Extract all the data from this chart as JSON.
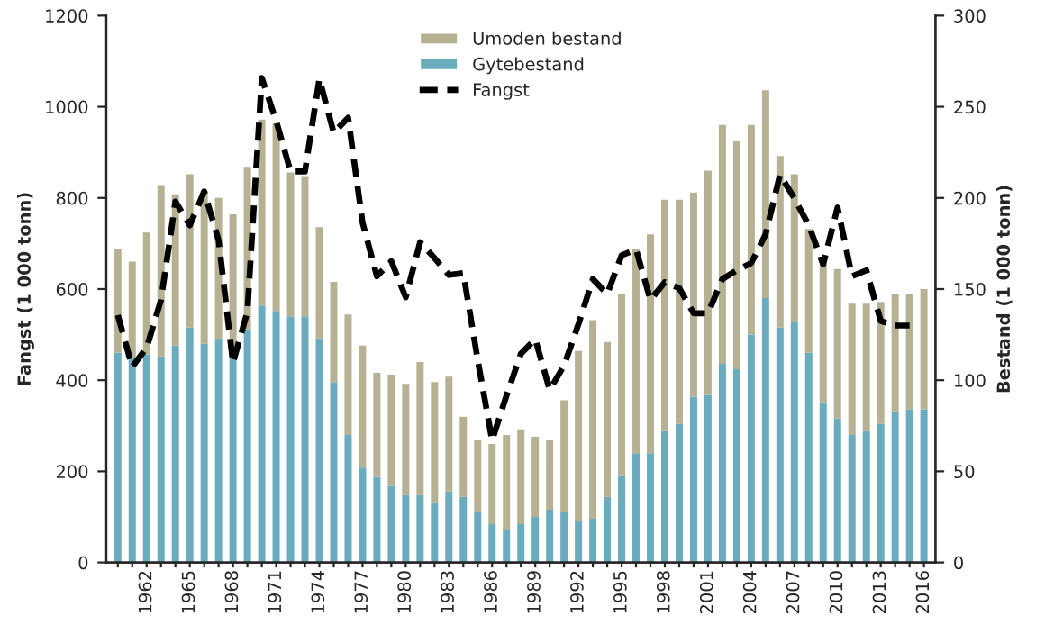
{
  "chart_data": {
    "type": "bar",
    "stacked": true,
    "ylabel": "Fangst (1 000 tonn)",
    "y2label": "Bestand (1 000 tonn)",
    "categories": [
      null,
      null,
      "1962",
      null,
      null,
      "1965",
      null,
      null,
      "1968",
      null,
      null,
      "1971",
      null,
      null,
      "1974",
      null,
      null,
      "1977",
      null,
      null,
      "1980",
      null,
      null,
      "1983",
      null,
      null,
      "1986",
      null,
      null,
      "1989",
      null,
      null,
      "1992",
      null,
      null,
      "1995",
      null,
      null,
      "1998",
      null,
      null,
      "2001",
      null,
      null,
      "2004",
      null,
      null,
      "2007",
      null,
      null,
      "2010",
      null,
      null,
      "2013",
      null,
      null,
      "2016"
    ],
    "series": [
      {
        "name": "Gytebestand",
        "axis": "y2",
        "color": "#6aacbd",
        "values": [
          115,
          112,
          114,
          113,
          119,
          129,
          120,
          123,
          113,
          128,
          141,
          138,
          135,
          135,
          123,
          99,
          70,
          52,
          47,
          42,
          37,
          37,
          33,
          39,
          36,
          28,
          21,
          18,
          21,
          25,
          29,
          28,
          23,
          24,
          36,
          48,
          60,
          60,
          72,
          76,
          91,
          92,
          109,
          106,
          125,
          145,
          129,
          132,
          115,
          88,
          79,
          70,
          72,
          76,
          83,
          84,
          84
        ]
      },
      {
        "name": "Umoden bestand",
        "axis": "y2",
        "color": "#b6b193",
        "values": [
          57,
          53,
          67,
          94,
          83,
          84,
          84,
          77,
          78,
          89,
          102,
          103,
          79,
          77,
          61,
          55,
          66,
          67,
          57,
          61,
          61,
          73,
          66,
          63,
          44,
          39,
          44,
          52,
          52,
          44,
          38,
          61,
          93,
          109,
          85,
          99,
          112,
          120,
          127,
          123,
          112,
          123,
          131,
          125,
          115,
          114,
          94,
          81,
          68,
          76,
          82,
          72,
          70,
          67,
          64,
          63,
          66
        ]
      },
      {
        "name": "Fangst",
        "type": "line",
        "axis": "y",
        "color": "#000000",
        "line_style": "dashed",
        "values": [
          543,
          429,
          471,
          576,
          792,
          740,
          814,
          707,
          438,
          550,
          1063,
          969,
          858,
          858,
          1061,
          943,
          976,
          746,
          628,
          661,
          582,
          703,
          668,
          631,
          635,
          445,
          268,
          366,
          458,
          490,
          379,
          432,
          523,
          622,
          589,
          674,
          687,
          576,
          615,
          602,
          547,
          547,
          622,
          641,
          657,
          720,
          851,
          799,
          740,
          654,
          779,
          628,
          641,
          530,
          520,
          520,
          null
        ]
      }
    ],
    "ylim": [
      0,
      1200
    ],
    "yticks": [
      0,
      200,
      400,
      600,
      800,
      1000,
      1200
    ],
    "y2lim": [
      0,
      300
    ],
    "y2ticks": [
      0,
      50,
      100,
      150,
      200,
      250,
      300
    ],
    "legend": "top",
    "grid": false
  }
}
